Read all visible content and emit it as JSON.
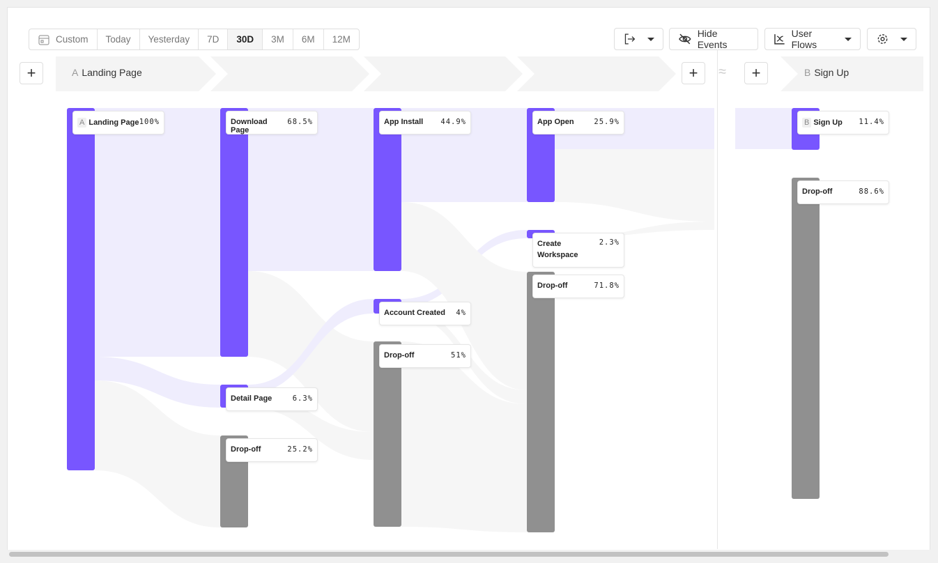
{
  "toolbar": {
    "date_ranges": [
      "Custom",
      "Today",
      "Yesterday",
      "7D",
      "30D",
      "3M",
      "6M",
      "12M"
    ],
    "active_range": "30D",
    "hide_events": "Hide Events",
    "report_type": "User Flows"
  },
  "steps": {
    "a": {
      "letter": "A",
      "label": "Landing Page"
    },
    "b": {
      "letter": "B",
      "label": "Sign Up"
    },
    "between_symbol": "≈",
    "add": "+"
  },
  "colors": {
    "event": "#7856ff",
    "dropoff": "#909090",
    "flow": "#efedfd"
  },
  "nodes": [
    {
      "label": "Landing Page",
      "badge": "A",
      "pct": "100%",
      "type": "event"
    },
    {
      "label": "Download Page",
      "pct": "68.5%",
      "type": "event"
    },
    {
      "label": "Detail Page",
      "pct": "6.3%",
      "type": "event"
    },
    {
      "label": "Drop-off",
      "pct": "25.2%",
      "type": "dropoff"
    },
    {
      "label": "App Install",
      "pct": "44.9%",
      "type": "event"
    },
    {
      "label": "Account Created",
      "pct": "4%",
      "type": "event"
    },
    {
      "label": "Drop-off",
      "pct": "51%",
      "type": "dropoff"
    },
    {
      "label": "App Open",
      "pct": "25.9%",
      "type": "event"
    },
    {
      "label": "Create Workspace",
      "pct": "2.3%",
      "type": "event"
    },
    {
      "label": "Drop-off",
      "pct": "71.8%",
      "type": "dropoff"
    },
    {
      "label": "Sign Up",
      "badge": "B",
      "pct": "11.4%",
      "type": "event"
    },
    {
      "label": "Drop-off",
      "pct": "88.6%",
      "type": "dropoff"
    }
  ]
}
